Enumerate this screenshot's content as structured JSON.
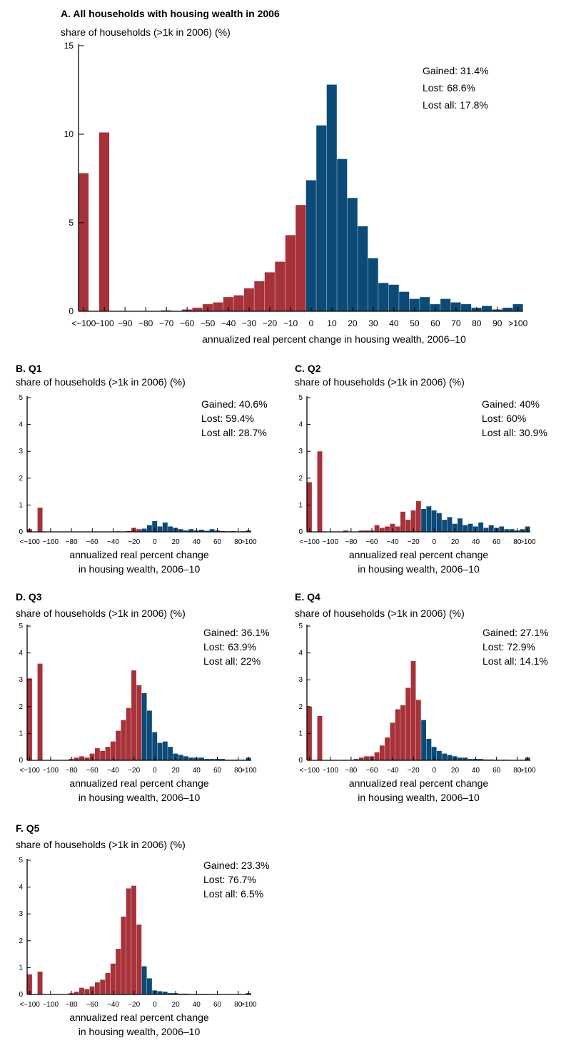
{
  "colors": {
    "lost": "#a8323a",
    "gained": "#0c4a78",
    "axis": "#000000"
  },
  "xticks_main": [
    "<−100",
    "−100",
    "−90",
    "−80",
    "−70",
    "−60",
    "−50",
    "−40",
    "−30",
    "−20",
    "−10",
    "0",
    "10",
    "20",
    "30",
    "40",
    "50",
    "60",
    "70",
    "80",
    "90",
    ">100"
  ],
  "xticks_small": [
    "<−100",
    "−100",
    "−80",
    "−60",
    "−40",
    "−20",
    "0",
    "20",
    "40",
    "60",
    "80",
    ">100"
  ],
  "chart_data": [
    {
      "type": "bar",
      "title": "A. All households with housing wealth in 2006",
      "ylabel": "share of households (>1k in 2006) (%)",
      "xlabel": [
        "annualized real percent change in housing wealth, 2006–10"
      ],
      "ylim": [
        0,
        15
      ],
      "yticks": [
        "0",
        "5",
        "10",
        "15"
      ],
      "annotations": [
        "Gained: 31.4%",
        "Lost: 68.6%",
        "Lost all: 17.8%"
      ],
      "bin_width": 5,
      "zero_bin_index": 22,
      "values": [
        7.8,
        0,
        10.1,
        0,
        0,
        0,
        0,
        0,
        0.05,
        0,
        0.1,
        0.2,
        0.4,
        0.5,
        0.8,
        0.9,
        1.3,
        1.7,
        2.2,
        2.8,
        4.3,
        6.0,
        7.4,
        10.5,
        12.8,
        8.6,
        6.4,
        4.8,
        3.0,
        1.6,
        1.5,
        1.1,
        0.7,
        0.8,
        0.4,
        0.7,
        0.5,
        0.4,
        0.2,
        0.3,
        0.1,
        0.2,
        0.4
      ]
    },
    {
      "type": "bar",
      "title": "B. Q1",
      "ylabel": "share of households (>1k in 2006) (%)",
      "xlabel": [
        "annualized real percent change",
        "in housing wealth, 2006–10"
      ],
      "ylim": [
        0,
        5
      ],
      "yticks": [
        "0",
        "1",
        "2",
        "3",
        "4",
        "5"
      ],
      "annotations": [
        "Gained: 40.6%",
        "Lost: 59.4%",
        "Lost all: 28.7%"
      ],
      "bin_width": 5,
      "zero_bin_index": 22,
      "values": [
        0.1,
        0,
        0.9,
        0,
        0,
        0,
        0,
        0,
        0,
        0,
        0,
        0,
        0,
        0,
        0,
        0,
        0,
        0.02,
        0,
        0.03,
        0.15,
        0.1,
        0.12,
        0.25,
        0.4,
        0.2,
        0.35,
        0.2,
        0.15,
        0.1,
        0.05,
        0.1,
        0.05,
        0.08,
        0.04,
        0.1,
        0.05,
        0.03,
        0.02,
        0.03,
        0.01,
        0.02,
        0.05
      ]
    },
    {
      "type": "bar",
      "title": "C. Q2",
      "ylabel": "share of households (>1k in 2006) (%)",
      "xlabel": [
        "annualized real percent change",
        "in housing wealth, 2006–10"
      ],
      "ylim": [
        0,
        5
      ],
      "yticks": [
        "0",
        "1",
        "2",
        "3",
        "4",
        "5"
      ],
      "annotations": [
        "Gained: 40%",
        "Lost: 60%",
        "Lost all: 30.9%"
      ],
      "bin_width": 5,
      "zero_bin_index": 22,
      "values": [
        1.85,
        0,
        3.0,
        0,
        0,
        0,
        0,
        0.05,
        0,
        0,
        0.05,
        0.05,
        0.05,
        0.25,
        0.15,
        0.2,
        0.3,
        0.2,
        0.75,
        0.45,
        0.8,
        1.15,
        0.85,
        0.95,
        0.8,
        0.7,
        0.45,
        0.55,
        0.3,
        0.5,
        0.25,
        0.3,
        0.2,
        0.35,
        0.15,
        0.25,
        0.15,
        0.2,
        0.1,
        0.1,
        0.05,
        0.1,
        0.2
      ]
    },
    {
      "type": "bar",
      "title": "D. Q3",
      "ylabel": "share of households (>1k in 2006) (%)",
      "xlabel": [
        "annualized real percent change",
        "in housing wealth, 2006–10"
      ],
      "ylim": [
        0,
        5
      ],
      "yticks": [
        "0",
        "1",
        "2",
        "3",
        "4",
        "5"
      ],
      "annotations": [
        "Gained: 36.1%",
        "Lost: 63.9%",
        "Lost all: 22%"
      ],
      "bin_width": 5,
      "zero_bin_index": 22,
      "values": [
        3.05,
        0,
        3.6,
        0,
        0,
        0,
        0,
        0,
        0.05,
        0.1,
        0.15,
        0.1,
        0.25,
        0.45,
        0.35,
        0.5,
        0.7,
        1.1,
        1.5,
        1.95,
        3.35,
        2.8,
        2.5,
        1.85,
        1.05,
        0.65,
        0.7,
        0.5,
        0.25,
        0.2,
        0.15,
        0.1,
        0.1,
        0.1,
        0.05,
        0.05,
        0.05,
        0.05,
        0.02,
        0.02,
        0.02,
        0.02,
        0.1
      ]
    },
    {
      "type": "bar",
      "title": "E. Q4",
      "ylabel": "share of households (>1k in 2006) (%)",
      "xlabel": [
        "annualized real percent change",
        "in housing wealth, 2006–10"
      ],
      "ylim": [
        0,
        5
      ],
      "yticks": [
        "0",
        "1",
        "2",
        "3",
        "4",
        "5"
      ],
      "annotations": [
        "Gained: 27.1%",
        "Lost: 72.9%",
        "Lost all: 14.1%"
      ],
      "bin_width": 5,
      "zero_bin_index": 22,
      "values": [
        2.0,
        0,
        1.65,
        0,
        0,
        0,
        0,
        0,
        0,
        0.05,
        0.1,
        0.15,
        0.15,
        0.3,
        0.55,
        0.85,
        1.4,
        1.9,
        2.05,
        2.7,
        3.7,
        2.25,
        1.5,
        0.8,
        0.5,
        0.35,
        0.25,
        0.2,
        0.15,
        0.1,
        0.1,
        0.05,
        0.05,
        0.05,
        0.03,
        0.03,
        0.02,
        0.02,
        0.02,
        0.01,
        0.01,
        0.02,
        0.1
      ]
    },
    {
      "type": "bar",
      "title": "F. Q5",
      "ylabel": "share of households (>1k in 2006) (%)",
      "xlabel": [
        "annualized real percent change",
        "in housing wealth, 2006–10"
      ],
      "ylim": [
        0,
        5
      ],
      "yticks": [
        "0",
        "1",
        "2",
        "3",
        "4",
        "5"
      ],
      "annotations": [
        "Gained: 23.3%",
        "Lost: 76.7%",
        "Lost all: 6.5%"
      ],
      "bin_width": 5,
      "zero_bin_index": 22,
      "values": [
        0.75,
        0,
        0.85,
        0,
        0,
        0,
        0,
        0,
        0.05,
        0.1,
        0.25,
        0.2,
        0.3,
        0.45,
        0.55,
        0.8,
        1.15,
        1.7,
        2.9,
        3.95,
        4.05,
        2.6,
        1.05,
        0.6,
        0.15,
        0.12,
        0.1,
        0.05,
        0.05,
        0.03,
        0.03,
        0.02,
        0.02,
        0.02,
        0.02,
        0.01,
        0.01,
        0.01,
        0.01,
        0.01,
        0.01,
        0.01,
        0.05
      ]
    }
  ]
}
